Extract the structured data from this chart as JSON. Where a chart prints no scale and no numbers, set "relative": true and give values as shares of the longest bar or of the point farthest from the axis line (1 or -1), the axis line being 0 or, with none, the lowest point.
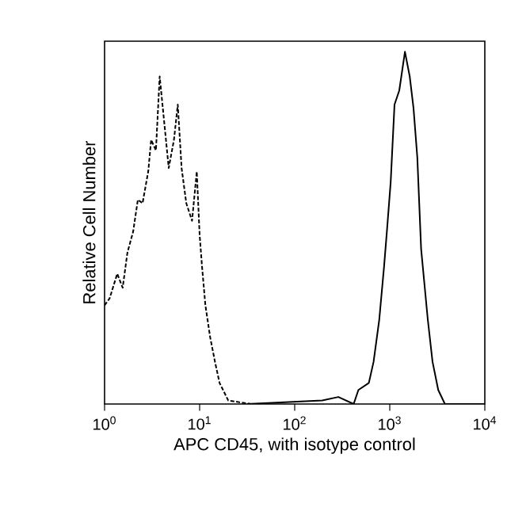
{
  "chart_data": {
    "type": "line",
    "relative": true,
    "log": "x",
    "xlabel": "APC CD45, with isotype control",
    "ylabel": "Relative Cell Number",
    "xlim": [
      1,
      10000
    ],
    "xticks": [
      {
        "value": 1,
        "label": "10$^{0}$"
      },
      {
        "value": 10,
        "label": "10$^{1}$"
      },
      {
        "value": 100,
        "label": "10$^{2}$"
      },
      {
        "value": 1000,
        "label": "10$^{3}$"
      },
      {
        "value": 10000,
        "label": "10$^{4}$"
      }
    ],
    "marker": "none",
    "series": [
      {
        "color": "#000000",
        "line_style": "dashed",
        "x": [
          1,
          1.13,
          1.36,
          1.55,
          1.74,
          2.0,
          2.24,
          2.51,
          2.88,
          3.09,
          3.47,
          3.8,
          4.17,
          4.73,
          5.37,
          5.89,
          6.46,
          7.24,
          8.32,
          9.33,
          10,
          10.6,
          11.5,
          12.9,
          14.5,
          16.2,
          20,
          34.7
        ],
        "values": [
          0.28,
          0.3,
          0.37,
          0.33,
          0.43,
          0.49,
          0.58,
          0.57,
          0.66,
          0.75,
          0.72,
          0.93,
          0.82,
          0.67,
          0.75,
          0.85,
          0.67,
          0.57,
          0.52,
          0.66,
          0.48,
          0.39,
          0.28,
          0.19,
          0.12,
          0.06,
          0.01,
          0
        ]
      },
      {
        "color": "#000000",
        "line_style": "solid",
        "x": [
          31.6,
          195,
          288,
          417,
          468,
          603,
          676,
          776,
          871,
          933,
          1023,
          1122,
          1259,
          1445,
          1622,
          1778,
          1950,
          2138,
          2512,
          2818,
          3236,
          3802,
          10000
        ],
        "values": [
          0,
          0.01,
          0.02,
          0,
          0.04,
          0.06,
          0.12,
          0.24,
          0.39,
          0.49,
          0.63,
          0.85,
          0.89,
          1.0,
          0.93,
          0.84,
          0.7,
          0.44,
          0.24,
          0.12,
          0.04,
          0,
          0
        ]
      }
    ]
  }
}
